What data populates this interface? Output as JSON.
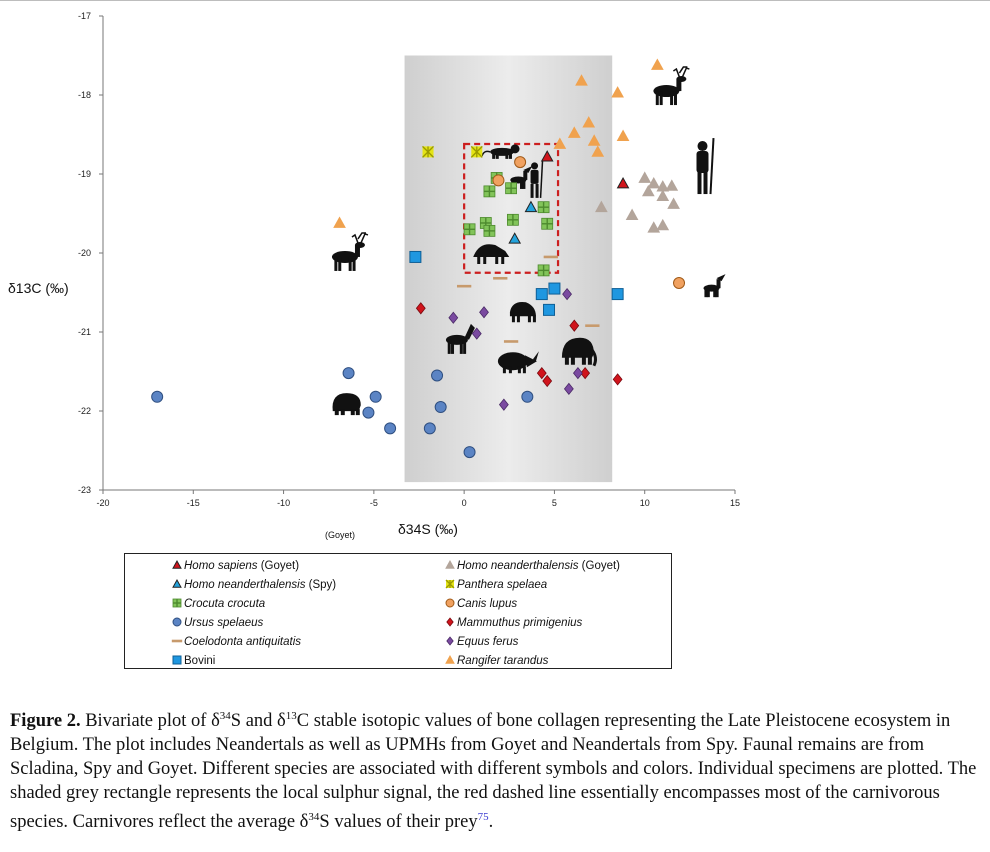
{
  "chart_data": {
    "type": "scatter",
    "xlabel": "δ34S (‰)",
    "ylabel": "δ13C (‰)",
    "xlim": [
      -20,
      15
    ],
    "ylim": [
      -23,
      -17
    ],
    "x_ticks": [
      "-20",
      "-15",
      "-10",
      "-5",
      "0",
      "5",
      "10",
      "15"
    ],
    "y_ticks": [
      "-17",
      "-18",
      "-19",
      "-20",
      "-21",
      "-22",
      "-23"
    ],
    "grid": false,
    "x_annotation": "(Goyet)",
    "shaded_region": {
      "x": [
        -3.3,
        8.2
      ],
      "y": [
        -22.9,
        -17.5
      ],
      "color": "#d9d9d9"
    },
    "dashed_box": {
      "x": [
        0,
        5.2
      ],
      "y": [
        -20.25,
        -18.62
      ],
      "color": "#cc1f1f"
    },
    "legend_placement": "bottom",
    "series": [
      {
        "name": "Homo sapiens (Goyet)",
        "marker": "triangle",
        "color": "#d0141c",
        "stroke": "#222222",
        "points": [
          [
            4.6,
            -18.78
          ],
          [
            8.8,
            -19.12
          ]
        ]
      },
      {
        "name": "Homo neanderthalensis (Spy)",
        "marker": "triangle",
        "color": "#24a3dc",
        "stroke": "#222222",
        "points": [
          [
            3.7,
            -19.42
          ],
          [
            2.8,
            -19.82
          ]
        ]
      },
      {
        "name": "Crocuta crocuta",
        "marker": "plus-square",
        "color": "#82c45a",
        "stroke": "#4d8a2e",
        "points": [
          [
            1.4,
            -19.22
          ],
          [
            1.8,
            -19.05
          ],
          [
            2.6,
            -19.18
          ],
          [
            2.7,
            -19.58
          ],
          [
            1.2,
            -19.62
          ],
          [
            1.4,
            -19.72
          ],
          [
            0.3,
            -19.7
          ],
          [
            4.4,
            -19.42
          ],
          [
            4.6,
            -19.63
          ],
          [
            4.4,
            -20.22
          ]
        ]
      },
      {
        "name": "Canis lupus",
        "marker": "circle",
        "color": "#f0a160",
        "stroke": "#a05a18",
        "points": [
          [
            3.1,
            -18.85
          ],
          [
            1.9,
            -19.08
          ],
          [
            11.9,
            -20.38
          ]
        ]
      },
      {
        "name": "Ursus spelaeus",
        "marker": "circle",
        "color": "#5b84c4",
        "stroke": "#2f4f80",
        "points": [
          [
            -17,
            -21.82
          ],
          [
            -6.4,
            -21.52
          ],
          [
            -4.9,
            -21.82
          ],
          [
            -5.3,
            -22.02
          ],
          [
            -4.1,
            -22.22
          ],
          [
            -1.5,
            -21.55
          ],
          [
            -1.3,
            -21.95
          ],
          [
            -1.9,
            -22.22
          ],
          [
            0.3,
            -22.52
          ],
          [
            3.5,
            -21.82
          ]
        ]
      },
      {
        "name": "Mammuthus primigenius",
        "marker": "diamond",
        "color": "#d0141c",
        "stroke": "#7a0a10",
        "points": [
          [
            -2.4,
            -20.7
          ],
          [
            6.1,
            -20.92
          ],
          [
            4.3,
            -21.52
          ],
          [
            4.6,
            -21.62
          ],
          [
            6.7,
            -21.52
          ],
          [
            8.5,
            -21.6
          ]
        ]
      },
      {
        "name": "Coelodonta antiquitatis",
        "marker": "dash",
        "color": "#c79a6c",
        "stroke": "#c79a6c",
        "points": [
          [
            0,
            -20.42
          ],
          [
            2,
            -20.32
          ],
          [
            4.8,
            -20.05
          ],
          [
            2.6,
            -21.12
          ],
          [
            7.1,
            -20.92
          ]
        ]
      },
      {
        "name": "Equus ferus",
        "marker": "diamond",
        "color": "#7a4aa0",
        "stroke": "#4a2a66",
        "points": [
          [
            5.7,
            -20.52
          ],
          [
            -0.6,
            -20.82
          ],
          [
            1.1,
            -20.75
          ],
          [
            0.7,
            -21.02
          ],
          [
            6.3,
            -21.52
          ],
          [
            5.8,
            -21.72
          ],
          [
            2.2,
            -21.92
          ]
        ]
      },
      {
        "name": "Bovini",
        "marker": "square",
        "color": "#1f97e0",
        "stroke": "#0e5f96",
        "points": [
          [
            -2.7,
            -20.05
          ],
          [
            4.3,
            -20.52
          ],
          [
            5.0,
            -20.45
          ],
          [
            4.7,
            -20.72
          ],
          [
            8.5,
            -20.52
          ]
        ]
      },
      {
        "name": "Homo neanderthalensis (Goyet)",
        "marker": "triangle",
        "color": "#b3a59b",
        "stroke": "#b3a59b",
        "points": [
          [
            7.6,
            -19.42
          ],
          [
            10.0,
            -19.05
          ],
          [
            10.2,
            -19.22
          ],
          [
            10.5,
            -19.12
          ],
          [
            11.0,
            -19.16
          ],
          [
            11.0,
            -19.28
          ],
          [
            11.5,
            -19.15
          ],
          [
            11.6,
            -19.38
          ],
          [
            9.3,
            -19.52
          ],
          [
            10.5,
            -19.68
          ],
          [
            11.0,
            -19.65
          ]
        ]
      },
      {
        "name": "Panthera spelaea",
        "marker": "star",
        "color": "#e4e416",
        "stroke": "#9a9a00",
        "points": [
          [
            -2,
            -18.72
          ],
          [
            0.7,
            -18.72
          ]
        ]
      },
      {
        "name": "Rangifer tarandus",
        "marker": "triangle",
        "color": "#f0a24e",
        "stroke": "#f0a24e",
        "points": [
          [
            -6.9,
            -19.62
          ],
          [
            6.5,
            -17.82
          ],
          [
            8.5,
            -17.97
          ],
          [
            10.7,
            -17.62
          ],
          [
            6.9,
            -18.35
          ],
          [
            6.1,
            -18.48
          ],
          [
            7.2,
            -18.58
          ],
          [
            7.4,
            -18.72
          ],
          [
            8.8,
            -18.52
          ],
          [
            5.3,
            -18.62
          ]
        ]
      }
    ]
  },
  "legend": {
    "left": [
      {
        "label": "Homo sapiens (Goyet)",
        "italic_part": "Homo sapiens",
        "marker": "triangle",
        "color": "#d0141c",
        "stroke": "#222222"
      },
      {
        "label": "Homo neanderthalensis (Spy)",
        "italic_part": "Homo neanderthalensis",
        "marker": "triangle",
        "color": "#24a3dc",
        "stroke": "#222222"
      },
      {
        "label": "Crocuta crocuta",
        "italic_part": "Crocuta crocuta",
        "marker": "plus-square",
        "color": "#82c45a",
        "stroke": "#4d8a2e"
      },
      {
        "label": "Ursus spelaeus",
        "italic_part": "Ursus spelaeus",
        "marker": "circle",
        "color": "#5b84c4",
        "stroke": "#2f4f80"
      },
      {
        "label": "Coelodonta antiquitatis",
        "italic_part": "Coelodonta antiquitatis",
        "marker": "dash",
        "color": "#c79a6c",
        "stroke": "#c79a6c"
      },
      {
        "label": "Bovini",
        "italic_part": "",
        "marker": "square",
        "color": "#1f97e0",
        "stroke": "#0e5f96"
      }
    ],
    "right": [
      {
        "label": "Homo neanderthalensis (Goyet)",
        "italic_part": "Homo neanderthalensis",
        "marker": "triangle",
        "color": "#b3a59b",
        "stroke": "#b3a59b"
      },
      {
        "label": "Panthera spelaea",
        "italic_part": "Panthera spelaea",
        "marker": "star",
        "color": "#e4e416",
        "stroke": "#9a9a00"
      },
      {
        "label": "Canis lupus",
        "italic_part": "Canis lupus",
        "marker": "circle",
        "color": "#f0a160",
        "stroke": "#a05a18"
      },
      {
        "label": "Mammuthus primigenius",
        "italic_part": "Mammuthus primigenius",
        "marker": "diamond",
        "color": "#d0141c",
        "stroke": "#7a0a10"
      },
      {
        "label": "Equus ferus",
        "italic_part": "Equus ferus",
        "marker": "diamond",
        "color": "#7a4aa0",
        "stroke": "#4a2a66"
      },
      {
        "label": "Rangifer tarandus",
        "italic_part": "Rangifer tarandus",
        "marker": "triangle",
        "color": "#f0a24e",
        "stroke": "#f0a24e"
      }
    ]
  },
  "silhouettes": [
    {
      "icon": "reindeer-icon",
      "x": 11.2,
      "y": -17.95
    },
    {
      "icon": "reindeer-icon",
      "x": -6.6,
      "y": -20.05
    },
    {
      "icon": "neanderthal-icon",
      "x": 13.2,
      "y": -18.95
    },
    {
      "icon": "lion-icon",
      "x": 2.1,
      "y": -18.72
    },
    {
      "icon": "human-with-spear-icon",
      "x": 3.9,
      "y": -19.1
    },
    {
      "icon": "wolf-icon",
      "x": 3.0,
      "y": -19.05
    },
    {
      "icon": "wolf-icon",
      "x": 13.7,
      "y": -20.42
    },
    {
      "icon": "hyena-icon",
      "x": 1.5,
      "y": -20.0
    },
    {
      "icon": "bison-icon",
      "x": 3.2,
      "y": -20.75
    },
    {
      "icon": "horse-icon",
      "x": -0.4,
      "y": -21.1
    },
    {
      "icon": "rhino-icon",
      "x": 2.7,
      "y": -21.37
    },
    {
      "icon": "mammoth-icon",
      "x": 6.3,
      "y": -21.25
    },
    {
      "icon": "bear-icon",
      "x": -6.5,
      "y": -21.9
    }
  ],
  "caption": {
    "label": "Figure 2.",
    "text_before": "Bivariate plot of δ",
    "sup1": "34",
    "text_mid1": "S and δ",
    "sup2": "13",
    "text_mid2": "C stable isotopic values of bone collagen representing the Late Pleistocene ecosystem in Belgium. The plot includes Neandertals as well as UPMHs from Goyet and Neandertals from Spy. Faunal remains are from Scladina, Spy and Goyet. Different species are associated with different symbols and colors. Individual specimens are plotted. The shaded grey rectangle represents the local sulphur signal, the red dashed line essentially encompasses most of the carnivorous species. Carnivores reflect the average δ",
    "sup3": "34",
    "text_after": "S values of their prey",
    "ref": "75",
    "end": "."
  }
}
